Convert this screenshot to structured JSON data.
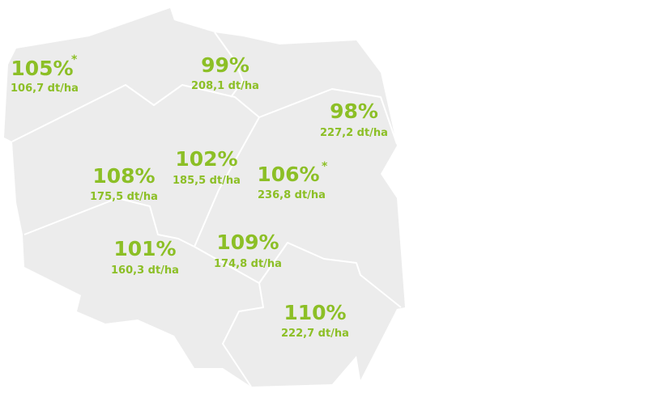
{
  "regions": [
    {
      "percent": "105%",
      "note": "*",
      "yield": "106,7 dt/ha"
    },
    {
      "percent": "99%",
      "yield": "208,1 dt/ha"
    },
    {
      "percent": "98%",
      "yield": "227,2 dt/ha"
    },
    {
      "percent": "102%",
      "yield": "185,5 dt/ha"
    },
    {
      "percent": "108%",
      "yield": "175,5 dt/ha"
    },
    {
      "percent": "106%",
      "note": "*",
      "yield": "236,8 dt/ha"
    },
    {
      "percent": "101%",
      "yield": "160,3 dt/ha"
    },
    {
      "percent": "109%",
      "yield": "174,8 dt/ha"
    },
    {
      "percent": "110%",
      "yield": "222,7 dt/ha"
    }
  ]
}
